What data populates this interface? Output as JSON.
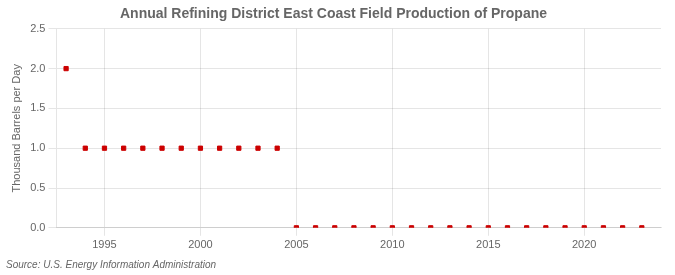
{
  "chart_data": {
    "type": "scatter",
    "title": "Annual Refining District East Coast Field Production of Propane",
    "y_label": "Thousand Barrels per Day",
    "annotations": [
      "Source: U.S. Energy Information Administration"
    ],
    "x": [
      1993,
      1994,
      1995,
      1996,
      1997,
      1998,
      1999,
      2000,
      2001,
      2002,
      2003,
      2004,
      2005,
      2006,
      2007,
      2008,
      2009,
      2010,
      2011,
      2012,
      2013,
      2014,
      2015,
      2016,
      2017,
      2018,
      2019,
      2020,
      2021,
      2022,
      2023
    ],
    "values": [
      2.0,
      1.0,
      1.0,
      1.0,
      1.0,
      1.0,
      1.0,
      1.0,
      1.0,
      1.0,
      1.0,
      1.0,
      0.0,
      0.0,
      0.0,
      0.0,
      0.0,
      0.0,
      0.0,
      0.0,
      0.0,
      0.0,
      0.0,
      0.0,
      0.0,
      0.0,
      0.0,
      0.0,
      0.0,
      0.0,
      0.0
    ],
    "color": "#cc0000",
    "marker": "square",
    "xlim": [
      1992.5,
      2024
    ],
    "xticks": [
      1995,
      2000,
      2005,
      2010,
      2015,
      2020
    ],
    "ylim": [
      0.0,
      2.5
    ],
    "yticks": [
      {
        "value": 0.0,
        "label": "0.0"
      },
      0.5,
      {
        "value": 1.0,
        "label": "1.0"
      },
      1.5,
      {
        "value": 2.0,
        "label": "2.0"
      },
      2.5
    ],
    "grid": true
  }
}
